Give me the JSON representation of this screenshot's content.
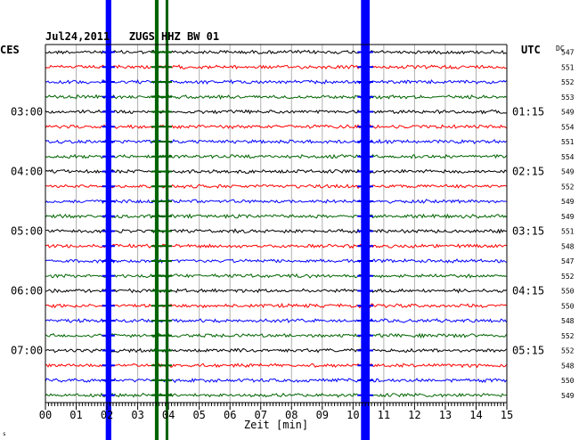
{
  "chart_data": {
    "type": "line",
    "title": "Jul24,2011   ZUGS HHZ BW 01",
    "left_label": "CES",
    "right_label": "UTC",
    "dc_label": "DC",
    "xlabel": "Zeit [min]",
    "x_ticks": [
      "00",
      "01",
      "02",
      "03",
      "04",
      "05",
      "06",
      "07",
      "08",
      "09",
      "10",
      "11",
      "12",
      "13",
      "14",
      "15"
    ],
    "xlim": [
      0,
      15
    ],
    "left_time_labels": [
      {
        "row": 4,
        "text": "03:00"
      },
      {
        "row": 8,
        "text": "04:00"
      },
      {
        "row": 12,
        "text": "05:00"
      },
      {
        "row": 16,
        "text": "06:00"
      },
      {
        "row": 20,
        "text": "07:00"
      }
    ],
    "right_time_labels": [
      {
        "row": 4,
        "text": "01:15"
      },
      {
        "row": 8,
        "text": "02:15"
      },
      {
        "row": 12,
        "text": "03:15"
      },
      {
        "row": 16,
        "text": "04:15"
      },
      {
        "row": 20,
        "text": "05:15"
      }
    ],
    "dc_values": [
      547,
      551,
      552,
      553,
      549,
      554,
      551,
      554,
      549,
      552,
      549,
      549,
      551,
      548,
      547,
      552,
      550,
      550,
      548,
      552,
      552,
      548,
      550,
      549
    ],
    "row_colors": [
      "#000000",
      "#ff0000",
      "#0000ff",
      "#006400"
    ],
    "events": [
      {
        "minute": 2.05,
        "color": "#0000ff",
        "width_min": 0.18
      },
      {
        "minute": 3.62,
        "color": "#006400",
        "width_min": 0.12
      },
      {
        "minute": 3.95,
        "color": "#006400",
        "width_min": 0.09
      },
      {
        "minute": 10.4,
        "color": "#0000ff",
        "width_min": 0.28
      }
    ],
    "footer_mark": "s",
    "grid": true
  }
}
